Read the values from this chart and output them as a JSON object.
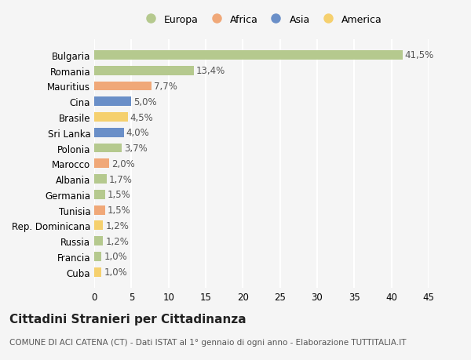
{
  "countries": [
    "Bulgaria",
    "Romania",
    "Mauritius",
    "Cina",
    "Brasile",
    "Sri Lanka",
    "Polonia",
    "Marocco",
    "Albania",
    "Germania",
    "Tunisia",
    "Rep. Dominicana",
    "Russia",
    "Francia",
    "Cuba"
  ],
  "values": [
    41.5,
    13.4,
    7.7,
    5.0,
    4.5,
    4.0,
    3.7,
    2.0,
    1.7,
    1.5,
    1.5,
    1.2,
    1.2,
    1.0,
    1.0
  ],
  "labels": [
    "41,5%",
    "13,4%",
    "7,7%",
    "5,0%",
    "4,5%",
    "4,0%",
    "3,7%",
    "2,0%",
    "1,7%",
    "1,5%",
    "1,5%",
    "1,2%",
    "1,2%",
    "1,0%",
    "1,0%"
  ],
  "categories": [
    "Europa",
    "Africa",
    "Asia",
    "America"
  ],
  "colors": {
    "Europa": "#b5c98e",
    "Africa": "#f0a878",
    "Asia": "#6a8fc8",
    "America": "#f5d06e"
  },
  "bar_colors": [
    "Europa",
    "Europa",
    "Africa",
    "Asia",
    "America",
    "Asia",
    "Europa",
    "Africa",
    "Europa",
    "Europa",
    "Africa",
    "America",
    "Europa",
    "Europa",
    "America"
  ],
  "title": "Cittadini Stranieri per Cittadinanza",
  "subtitle": "COMUNE DI ACI CATENA (CT) - Dati ISTAT al 1° gennaio di ogni anno - Elaborazione TUTTITALIA.IT",
  "xlim": [
    0,
    45
  ],
  "xticks": [
    0,
    5,
    10,
    15,
    20,
    25,
    30,
    35,
    40,
    45
  ],
  "bg_color": "#f5f5f5",
  "grid_color": "#ffffff",
  "bar_height": 0.6,
  "label_fontsize": 8.5,
  "tick_fontsize": 8.5,
  "title_fontsize": 11,
  "subtitle_fontsize": 7.5
}
